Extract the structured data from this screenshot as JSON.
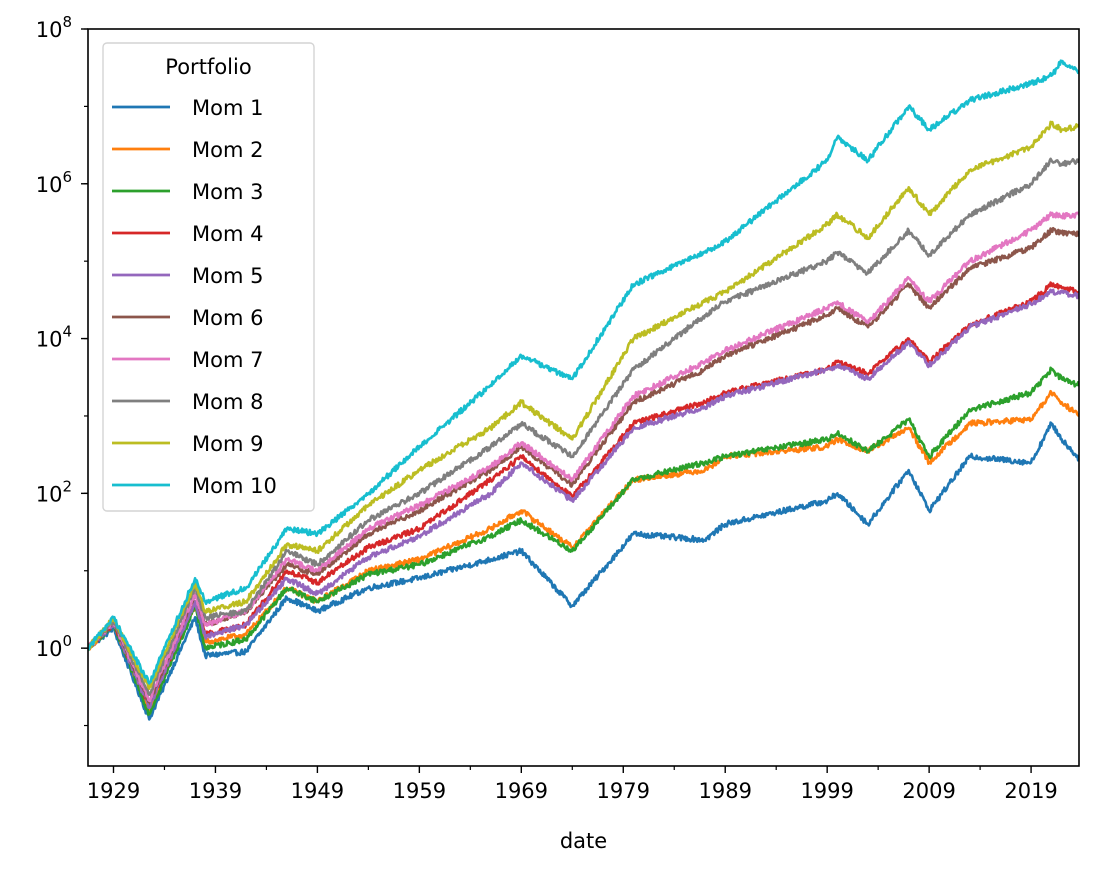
{
  "chart_data": {
    "type": "line",
    "xlabel": "date",
    "ylabel": "",
    "yscale": "log",
    "xlim": [
      1926.5,
      2023.7
    ],
    "ylim": [
      0.03,
      100000000
    ],
    "x_ticks": [
      {
        "value": 1929,
        "label": "1929"
      },
      {
        "value": 1939,
        "label": "1939"
      },
      {
        "value": 1949,
        "label": "1949"
      },
      {
        "value": 1959,
        "label": "1959"
      },
      {
        "value": 1969,
        "label": "1969"
      },
      {
        "value": 1979,
        "label": "1979"
      },
      {
        "value": 1989,
        "label": "1989"
      },
      {
        "value": 1999,
        "label": "1999"
      },
      {
        "value": 2009,
        "label": "2009"
      },
      {
        "value": 2019,
        "label": "2019"
      }
    ],
    "x_minor_ticks": [
      1934,
      1944,
      1954,
      1964,
      1974,
      1984,
      1994,
      2004,
      2014
    ],
    "y_ticks": [
      {
        "value": 1,
        "base": "10",
        "exp": "0"
      },
      {
        "value": 100,
        "base": "10",
        "exp": "2"
      },
      {
        "value": 10000,
        "base": "10",
        "exp": "4"
      },
      {
        "value": 1000000,
        "base": "10",
        "exp": "6"
      },
      {
        "value": 100000000,
        "base": "10",
        "exp": "8"
      }
    ],
    "legend": {
      "title": "Portfolio",
      "position": "upper-left"
    },
    "x": [
      1926.5,
      1929,
      1932.5,
      1937,
      1938,
      1942,
      1946,
      1949,
      1954,
      1959,
      1966,
      1969,
      1974,
      1980,
      1987,
      1989,
      1999,
      2000,
      2003,
      2007,
      2009,
      2013,
      2019,
      2021,
      2022,
      2023.7
    ],
    "series": [
      {
        "name": "Mom 1",
        "color": "#1f77b4",
        "values": [
          1,
          1.8,
          0.12,
          2.5,
          0.8,
          0.9,
          4.5,
          3,
          6,
          8,
          14,
          18,
          3.5,
          30,
          25,
          40,
          80,
          100,
          40,
          200,
          60,
          300,
          250,
          800,
          500,
          280
        ]
      },
      {
        "name": "Mom 2",
        "color": "#ff7f0e",
        "values": [
          1,
          2,
          0.16,
          3.5,
          1.2,
          1.5,
          6,
          4,
          10,
          14,
          35,
          60,
          20,
          150,
          200,
          300,
          400,
          500,
          350,
          700,
          250,
          800,
          900,
          2000,
          1500,
          1000
        ]
      },
      {
        "name": "Mom 3",
        "color": "#2ca02c",
        "values": [
          1,
          2,
          0.14,
          3.5,
          1,
          1.3,
          6,
          4,
          9,
          12,
          28,
          45,
          18,
          150,
          250,
          300,
          500,
          600,
          350,
          900,
          300,
          1200,
          2000,
          4000,
          3000,
          2500
        ]
      },
      {
        "name": "Mom 4",
        "color": "#d62728",
        "values": [
          1,
          2.1,
          0.18,
          4,
          1.5,
          2,
          10,
          7,
          20,
          35,
          150,
          300,
          90,
          800,
          1500,
          2000,
          4000,
          5000,
          3500,
          10000,
          5000,
          15000,
          30000,
          50000,
          45000,
          40000
        ]
      },
      {
        "name": "Mom 5",
        "color": "#9467bd",
        "values": [
          1,
          2.1,
          0.17,
          4,
          1.4,
          2,
          8,
          5,
          15,
          28,
          100,
          250,
          80,
          700,
          1300,
          1800,
          4000,
          4500,
          3000,
          9000,
          4500,
          14000,
          28000,
          40000,
          40000,
          35000
        ]
      },
      {
        "name": "Mom 6",
        "color": "#8c564b",
        "values": [
          1,
          2.2,
          0.2,
          5,
          2,
          3,
          12,
          9,
          30,
          60,
          200,
          400,
          130,
          1500,
          4000,
          6000,
          20000,
          25000,
          14000,
          50000,
          25000,
          80000,
          150000,
          250000,
          230000,
          220000
        ]
      },
      {
        "name": "Mom 7",
        "color": "#e377c2",
        "values": [
          1,
          2.2,
          0.21,
          5,
          2,
          3,
          14,
          10,
          35,
          70,
          220,
          450,
          150,
          1800,
          5000,
          7000,
          25000,
          30000,
          16000,
          60000,
          30000,
          100000,
          250000,
          400000,
          380000,
          400000
        ]
      },
      {
        "name": "Mom 8",
        "color": "#7f7f7f",
        "values": [
          1,
          2.3,
          0.25,
          6,
          2.5,
          3,
          18,
          12,
          45,
          100,
          400,
          800,
          300,
          4000,
          20000,
          30000,
          100000,
          130000,
          70000,
          250000,
          120000,
          400000,
          1000000,
          2000000,
          1800000,
          2000000
        ]
      },
      {
        "name": "Mom 9",
        "color": "#bcbd22",
        "values": [
          1,
          2.4,
          0.3,
          7,
          3,
          4,
          22,
          18,
          70,
          200,
          700,
          1500,
          500,
          10000,
          30000,
          40000,
          300000,
          400000,
          200000,
          900000,
          400000,
          1500000,
          3000000,
          6000000,
          5000000,
          5500000
        ]
      },
      {
        "name": "Mom 10",
        "color": "#17becf",
        "values": [
          1,
          2.5,
          0.35,
          8,
          4,
          6,
          35,
          30,
          100,
          400,
          2500,
          6000,
          3000,
          50000,
          130000,
          180000,
          2000000,
          4000000,
          2000000,
          10000000,
          5000000,
          12000000,
          20000000,
          25000000,
          38000000,
          28000000
        ]
      }
    ]
  }
}
